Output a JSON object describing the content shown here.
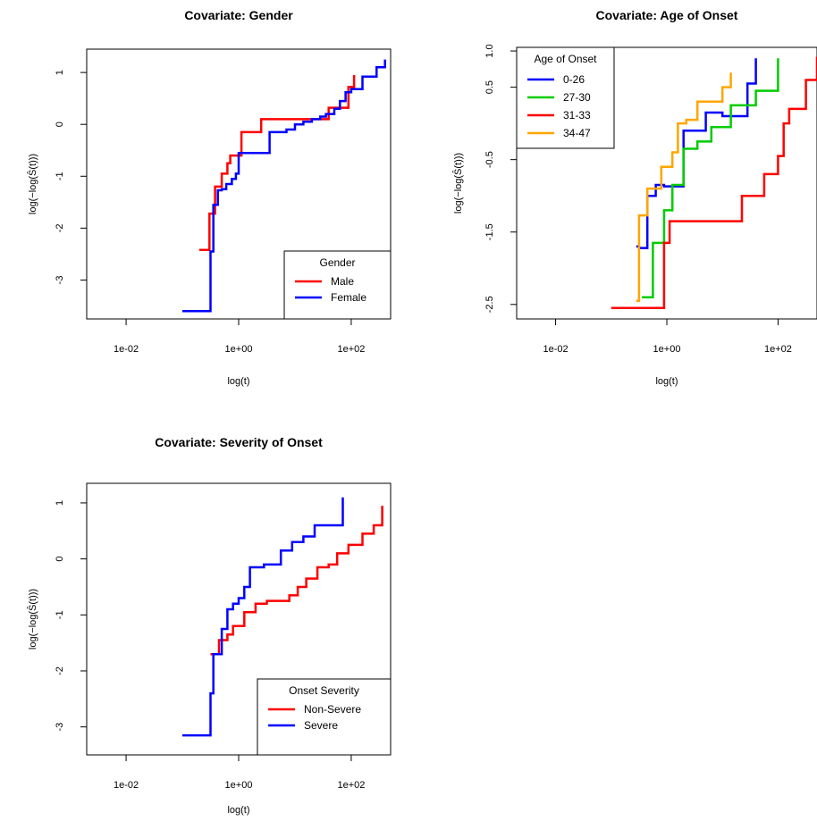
{
  "chart_data": [
    {
      "type": "line",
      "step": true,
      "log_x": true,
      "title": "Covariate: Gender",
      "xlabel": "log(t)",
      "ylabel": "log(−log(Ŝ(t)))",
      "xlim": [
        -2.7,
        2.7
      ],
      "ylim": [
        -3.75,
        1.45
      ],
      "xticks": [
        -2,
        0,
        2
      ],
      "xtick_labels": [
        "1e-02",
        "1e+00",
        "1e+02"
      ],
      "yticks": [
        -3,
        -2,
        -1,
        0,
        1
      ],
      "ytick_labels": [
        "-3",
        "-2",
        "-1",
        "0",
        "1"
      ],
      "grid": false,
      "legend": {
        "title": "Gender",
        "position": "bottom-right"
      },
      "series": [
        {
          "name": "Male",
          "color": "#ff0000",
          "x": [
            -0.7,
            -0.52,
            -0.42,
            -0.3,
            -0.2,
            -0.15,
            -0.1,
            0.05,
            0.15,
            0.4,
            1.15,
            1.6,
            1.95,
            2.05
          ],
          "y": [
            -2.42,
            -1.72,
            -1.2,
            -0.95,
            -0.75,
            -0.6,
            -0.6,
            -0.15,
            -0.15,
            0.1,
            0.1,
            0.32,
            0.72,
            0.95
          ]
        },
        {
          "name": "Female",
          "color": "#0000ff",
          "x": [
            -1.0,
            -0.5,
            -0.45,
            -0.37,
            -0.3,
            -0.22,
            -0.12,
            -0.05,
            0.0,
            0.2,
            0.55,
            0.85,
            1.0,
            1.15,
            1.3,
            1.45,
            1.55,
            1.7,
            1.8,
            1.9,
            2.0,
            2.2,
            2.45,
            2.6
          ],
          "y": [
            -3.6,
            -2.45,
            -1.55,
            -1.27,
            -1.25,
            -1.15,
            -1.05,
            -0.95,
            -0.55,
            -0.55,
            -0.15,
            -0.1,
            0.0,
            0.05,
            0.1,
            0.15,
            0.2,
            0.3,
            0.45,
            0.62,
            0.68,
            0.92,
            1.1,
            1.25
          ]
        }
      ]
    },
    {
      "type": "line",
      "step": true,
      "log_x": true,
      "title": "Covariate: Age of Onset",
      "xlabel": "log(t)",
      "ylabel": "log(−log(Ŝ(t)))",
      "xlim": [
        -2.7,
        2.7
      ],
      "ylim": [
        -2.7,
        1.05
      ],
      "xticks": [
        -2,
        0,
        2
      ],
      "xtick_labels": [
        "1e-02",
        "1e+00",
        "1e+02"
      ],
      "yticks": [
        -2.5,
        -1.5,
        -0.5,
        0.5,
        1.0
      ],
      "ytick_labels": [
        "-2.5",
        "-1.5",
        "-0.5",
        "0.5",
        "1.0"
      ],
      "grid": false,
      "legend": {
        "title": "Age of Onset",
        "position": "top-left"
      },
      "series": [
        {
          "name": "0-26",
          "color": "#0000ff",
          "x": [
            -0.55,
            -0.5,
            -0.35,
            -0.2,
            -0.05,
            0.3,
            0.7,
            1.0,
            1.45,
            1.55,
            1.6
          ],
          "y": [
            -1.7,
            -1.72,
            -1.0,
            -0.85,
            -0.87,
            -0.1,
            0.15,
            0.1,
            0.55,
            0.55,
            0.9
          ]
        },
        {
          "name": "27-30",
          "color": "#00cc00",
          "x": [
            -0.45,
            -0.25,
            -0.15,
            -0.05,
            0.1,
            0.3,
            0.55,
            0.8,
            1.15,
            1.4,
            1.6,
            2.0
          ],
          "y": [
            -2.4,
            -1.65,
            -1.65,
            -1.2,
            -0.85,
            -0.35,
            -0.25,
            -0.05,
            0.25,
            0.25,
            0.45,
            0.9
          ]
        },
        {
          "name": "31-33",
          "color": "#ff0000",
          "x": [
            -1.0,
            -0.05,
            0.05,
            1.35,
            1.75,
            2.0,
            2.1,
            2.2,
            2.5,
            2.7
          ],
          "y": [
            -2.55,
            -1.65,
            -1.35,
            -1.0,
            -0.7,
            -0.45,
            0.0,
            0.2,
            0.6,
            0.92
          ]
        },
        {
          "name": "34-47",
          "color": "#ffa500",
          "x": [
            -0.55,
            -0.5,
            -0.35,
            -0.25,
            -0.1,
            0.1,
            0.2,
            0.35,
            0.55,
            0.85,
            1.0,
            1.15
          ],
          "y": [
            -2.45,
            -1.27,
            -0.9,
            -0.9,
            -0.6,
            -0.4,
            0.0,
            0.05,
            0.3,
            0.3,
            0.5,
            0.7
          ]
        }
      ]
    },
    {
      "type": "line",
      "step": true,
      "log_x": true,
      "title": "Covariate: Severity of Onset",
      "xlabel": "log(t)",
      "ylabel": "log(−log(Ŝ(t)))",
      "xlim": [
        -2.7,
        2.7
      ],
      "ylim": [
        -3.5,
        1.35
      ],
      "xticks": [
        -2,
        0,
        2
      ],
      "xtick_labels": [
        "1e-02",
        "1e+00",
        "1e+02"
      ],
      "yticks": [
        -3,
        -2,
        -1,
        0,
        1
      ],
      "ytick_labels": [
        "-3",
        "-2",
        "-1",
        "0",
        "1"
      ],
      "grid": false,
      "legend": {
        "title": "Onset Severity",
        "position": "bottom-right"
      },
      "series": [
        {
          "name": "Non-Severe",
          "color": "#ff0000",
          "x": [
            -0.5,
            -0.35,
            -0.2,
            -0.1,
            0.1,
            0.3,
            0.5,
            0.9,
            1.05,
            1.2,
            1.4,
            1.6,
            1.75,
            1.95,
            2.2,
            2.4,
            2.55
          ],
          "y": [
            -1.7,
            -1.45,
            -1.35,
            -1.2,
            -0.95,
            -0.8,
            -0.75,
            -0.65,
            -0.5,
            -0.35,
            -0.15,
            -0.1,
            0.1,
            0.25,
            0.45,
            0.6,
            0.95
          ]
        },
        {
          "name": "Severe",
          "color": "#0000ff",
          "x": [
            -1.0,
            -0.5,
            -0.45,
            -0.3,
            -0.2,
            -0.1,
            0.0,
            0.1,
            0.2,
            0.45,
            0.75,
            0.95,
            1.15,
            1.35,
            1.65,
            1.85
          ],
          "y": [
            -3.15,
            -2.4,
            -1.7,
            -1.25,
            -0.9,
            -0.8,
            -0.7,
            -0.5,
            -0.15,
            -0.1,
            0.15,
            0.3,
            0.4,
            0.6,
            0.6,
            1.1
          ]
        }
      ]
    }
  ]
}
